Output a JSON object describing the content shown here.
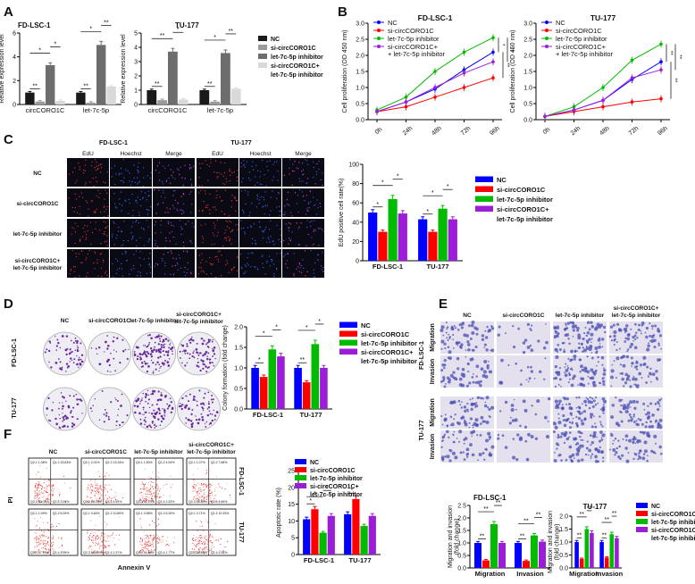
{
  "colors": {
    "nc": "#0000ff",
    "si": "#ff0000",
    "inh": "#00bb00",
    "combo": "#9b1dd6",
    "bar_nc": "#1a1a1a",
    "bar_si": "#9a9a9a",
    "bar_inh": "#6d6d6d",
    "bar_combo": "#d9d9d9",
    "fl_bg": "#0a0a14",
    "dish_bg": "#eeedf4",
    "tw_bg": "#e4e0ee"
  },
  "panel_letters": [
    "A",
    "B",
    "C",
    "D",
    "E",
    "F"
  ],
  "legend_4": [
    "NC",
    "si-circCORO1C",
    "let-7c-5p inhibitor",
    "si-circCORO1C+",
    "let-7c-5p inhibitor"
  ],
  "chart_data": [
    {
      "id": "A1",
      "type": "bar",
      "title": "FD-LSC-1",
      "categories": [
        "circCORO1C",
        "let-7c-5p"
      ],
      "series": [
        {
          "name": "NC",
          "values": [
            1.0,
            1.0
          ]
        },
        {
          "name": "si-circCORO1C",
          "values": [
            0.25,
            0.15
          ]
        },
        {
          "name": "let-7c-5p inhibitor",
          "values": [
            3.3,
            5.0
          ]
        },
        {
          "name": "si-circCORO1C+ let-7c-5p inhibitor",
          "values": [
            0.3,
            1.5
          ]
        }
      ],
      "ylabel": "Relative expression level",
      "ylim": [
        0,
        6
      ],
      "yticks": [
        "0",
        "2",
        "4",
        "6"
      ],
      "sig": [
        "**",
        "*",
        "*",
        "**",
        "*",
        "**"
      ]
    },
    {
      "id": "A2",
      "type": "bar",
      "title": "TU-177",
      "categories": [
        "circCORO1C",
        "let-7c-5p"
      ],
      "series": [
        {
          "name": "NC",
          "values": [
            1.0,
            1.0
          ]
        },
        {
          "name": "si-circCORO1C",
          "values": [
            0.3,
            0.2
          ]
        },
        {
          "name": "let-7c-5p inhibitor",
          "values": [
            3.7,
            3.6
          ]
        },
        {
          "name": "si-circCORO1C+ let-7c-5p inhibitor",
          "values": [
            0.35,
            1.1
          ]
        }
      ],
      "ylabel": "Relative expression level",
      "ylim": [
        0,
        5
      ],
      "yticks": [
        "0",
        "1",
        "2",
        "3",
        "4",
        "5"
      ],
      "sig": [
        "**",
        "**",
        "*",
        "**",
        "*",
        "**"
      ]
    },
    {
      "id": "B1",
      "type": "line",
      "title": "FD-LSC-1",
      "x": [
        "0h",
        "24h",
        "48h",
        "72h",
        "96h"
      ],
      "series": [
        {
          "name": "NC",
          "values": [
            0.25,
            0.55,
            0.95,
            1.55,
            2.1
          ]
        },
        {
          "name": "si-circCORO1C",
          "values": [
            0.25,
            0.4,
            0.7,
            1.0,
            1.3
          ]
        },
        {
          "name": "let-7c-5p inhibitor",
          "values": [
            0.3,
            0.7,
            1.5,
            2.1,
            2.55
          ]
        },
        {
          "name": "si-circCORO1C + let-7c-5p inhibitor",
          "values": [
            0.25,
            0.55,
            1.0,
            1.45,
            1.8
          ]
        }
      ],
      "ylabel": "Cell proliferation (OD 450 nm)",
      "ylim": [
        0,
        3.0
      ],
      "yticks": [
        "0.0",
        "0.5",
        "1.0",
        "1.5",
        "2.0",
        "2.5",
        "3.0"
      ],
      "sig": [
        "*",
        "**",
        "**"
      ]
    },
    {
      "id": "B2",
      "type": "line",
      "title": "TU-177",
      "x": [
        "0h",
        "24h",
        "48h",
        "72h",
        "96h"
      ],
      "series": [
        {
          "name": "NC",
          "values": [
            0.1,
            0.3,
            0.6,
            1.25,
            1.8
          ]
        },
        {
          "name": "si-circCORO1C",
          "values": [
            0.1,
            0.25,
            0.4,
            0.55,
            0.65
          ]
        },
        {
          "name": "let-7c-5p inhibitor",
          "values": [
            0.1,
            0.4,
            1.0,
            1.85,
            2.35
          ]
        },
        {
          "name": "si-circCORO1C + let-7c-5p inhibitor",
          "values": [
            0.1,
            0.3,
            0.6,
            1.3,
            1.55
          ]
        }
      ],
      "ylabel": "Cell proliferation (OD 450 nm)",
      "ylim": [
        0,
        3.0
      ],
      "yticks": [
        "0.0",
        "0.5",
        "1.0",
        "1.5",
        "2.0",
        "2.5",
        "3.0"
      ],
      "sig": [
        "**",
        "**",
        "**"
      ]
    },
    {
      "id": "C",
      "type": "bar",
      "title": "",
      "categories": [
        "FD-LSC-1",
        "TU-177"
      ],
      "series": [
        {
          "name": "NC",
          "values": [
            50,
            43
          ]
        },
        {
          "name": "si-circCORO1C",
          "values": [
            30,
            30
          ]
        },
        {
          "name": "let-7c-5p inhibitor",
          "values": [
            64,
            54
          ]
        },
        {
          "name": "si-circCORO1C+ let-7c-5p inhibitor",
          "values": [
            49,
            43
          ]
        }
      ],
      "ylabel": "EdU positive cell rate(%)",
      "ylim": [
        0,
        100
      ],
      "yticks": [
        "0",
        "20",
        "40",
        "60",
        "80",
        "100"
      ],
      "sig": [
        "*",
        "*",
        "*",
        "*",
        "*",
        "*"
      ]
    },
    {
      "id": "D",
      "type": "bar",
      "title": "",
      "categories": [
        "FD-LSC-1",
        "TU-177"
      ],
      "series": [
        {
          "name": "NC",
          "values": [
            1.0,
            1.0
          ]
        },
        {
          "name": "si-circCORO1C",
          "values": [
            0.78,
            0.65
          ]
        },
        {
          "name": "let-7c-5p inhibitor",
          "values": [
            1.45,
            1.58
          ]
        },
        {
          "name": "si-circCORO1C+ let-7c-5p inhibitor",
          "values": [
            1.28,
            1.0
          ]
        }
      ],
      "ylabel": "Colony formation (fold change)",
      "ylim": [
        0,
        2.0
      ],
      "yticks": [
        "0.0",
        "0.5",
        "1.0",
        "1.5",
        "2.0"
      ],
      "sig": [
        "*",
        "*",
        "*",
        "**",
        "*",
        "*"
      ]
    },
    {
      "id": "E1",
      "type": "bar",
      "title": "FD-LSC-1",
      "categories": [
        "Migration",
        "Invasion"
      ],
      "series": [
        {
          "name": "NC",
          "values": [
            1.0,
            1.0
          ]
        },
        {
          "name": "si-circCORO1C",
          "values": [
            0.3,
            0.28
          ]
        },
        {
          "name": "let-7c-5p inhibitor",
          "values": [
            1.75,
            1.3
          ]
        },
        {
          "name": "si-circCORO1C+ let-7c-5p inhibitor",
          "values": [
            1.0,
            1.05
          ]
        }
      ],
      "ylabel": "Migration and invasion (fold change)",
      "ylim": [
        0,
        2.5
      ],
      "yticks": [
        "0.0",
        "0.5",
        "1.0",
        "1.5",
        "2.0",
        "2.5"
      ],
      "sig": [
        "**",
        "**",
        "**",
        "**",
        "**",
        "**"
      ]
    },
    {
      "id": "E2",
      "type": "bar",
      "title": "TU-177",
      "categories": [
        "Migration",
        "Invasion"
      ],
      "series": [
        {
          "name": "NC",
          "values": [
            1.0,
            1.0
          ]
        },
        {
          "name": "si-circCORO1C",
          "values": [
            0.35,
            0.4
          ]
        },
        {
          "name": "let-7c-5p inhibitor",
          "values": [
            1.5,
            1.3
          ]
        },
        {
          "name": "si-circCORO1C+ let-7c-5p inhibitor",
          "values": [
            1.35,
            1.15
          ]
        }
      ],
      "ylabel": "Migration and invasion (fold change)",
      "ylim": [
        0,
        2.0
      ],
      "yticks": [
        "0.0",
        "0.5",
        "1.0",
        "1.5",
        "2.0"
      ],
      "sig": [
        "**",
        "**",
        "**",
        "**",
        "**",
        "**"
      ]
    },
    {
      "id": "F",
      "type": "bar",
      "title": "",
      "categories": [
        "FD-LSC-1",
        "TU-177"
      ],
      "series": [
        {
          "name": "NC",
          "values": [
            10.5,
            12.0
          ]
        },
        {
          "name": "si-circCORO1C",
          "values": [
            13.5,
            16.5
          ]
        },
        {
          "name": "let-7c-5p inhibitor",
          "values": [
            6.5,
            8.5
          ]
        },
        {
          "name": "si-circCORO1C+ let-7c-5p inhibitor",
          "values": [
            11.5,
            11.5
          ]
        }
      ],
      "ylabel": "Apoptotic rate (%)",
      "ylim": [
        0,
        25
      ],
      "yticks": [
        "0",
        "5",
        "10",
        "15",
        "20",
        "25"
      ],
      "sig": [
        "*",
        "*",
        "*",
        "*"
      ]
    }
  ],
  "panelC": {
    "lines": [
      "FD-LSC-1",
      "TU-177"
    ],
    "channels": [
      "EdU",
      "Hoechst",
      "Merge"
    ],
    "rows": [
      "NC",
      "si-circCORO1C",
      "let-7c-5p inhibitor",
      "si-circCORO1C+",
      "let-7c-5p inhibitor"
    ]
  },
  "panelD": {
    "cols": [
      "NC",
      "si-circCORO1C",
      "let-7c-5p inhibitor",
      "si-circCORO1C+",
      "let-7c-5p inhibitor"
    ],
    "rows": [
      "FD-LSC-1",
      "TU-177"
    ]
  },
  "panelE": {
    "cols": [
      "NC",
      "si-circCORO1C",
      "let-7c-5p inhibitor",
      "si-circCORO1C+",
      "let-7c-5p inhibitor"
    ],
    "lines": [
      "FD-LSC-1",
      "TU-177"
    ],
    "assays": [
      "Migration",
      "Invasion"
    ]
  },
  "panelF": {
    "cols": [
      "NC",
      "si-circCORO1C",
      "let-7c-5p inhibitor",
      "si-circCORO1C+",
      "let-7c-5p inhibitor"
    ],
    "lines": [
      "FD-LSC-1",
      "TU-177"
    ],
    "ylabel": "PI",
    "xlabel": "Annexin V",
    "quads": {
      "r0": [
        [
          "Q2-1 1.08%",
          "Q2-2 15.83%",
          "Q2-3 80.04%",
          "Q2-4 3.05%"
        ],
        [
          "Q2-1 2.01%",
          "Q2-2 13.34%",
          "Q2-3 80.39%",
          "Q2-4 4.54%"
        ],
        [
          "Q2-1 1.50%",
          "Q2-2 4.94%",
          "Q2-3 91.23%",
          "Q2-4 2.33%"
        ],
        [
          "Q2-1 1.07%",
          "Q2-2 7.68%",
          "Q2-3 86.59%",
          "Q2-4 4.66%"
        ]
      ],
      "r1": [
        [
          "Q2-1 1.09%",
          "Q2-2 8.25%",
          "Q2-3 87.71%",
          "Q2-4 2.95%"
        ],
        [
          "Q2-1 0.64%",
          "Q2-2 10.80%",
          "Q2-3 86.59%",
          "Q2-4 2.37%"
        ],
        [
          "Q2-1 0.58%",
          "Q2-2 6.25%",
          "Q2-3 91.40%",
          "Q2-4 1.77%"
        ],
        [
          "Q2-1 0.71%",
          "Q2-2 10.33%",
          "Q2-3 86.88%",
          "Q2-4 2.08%"
        ]
      ]
    }
  }
}
